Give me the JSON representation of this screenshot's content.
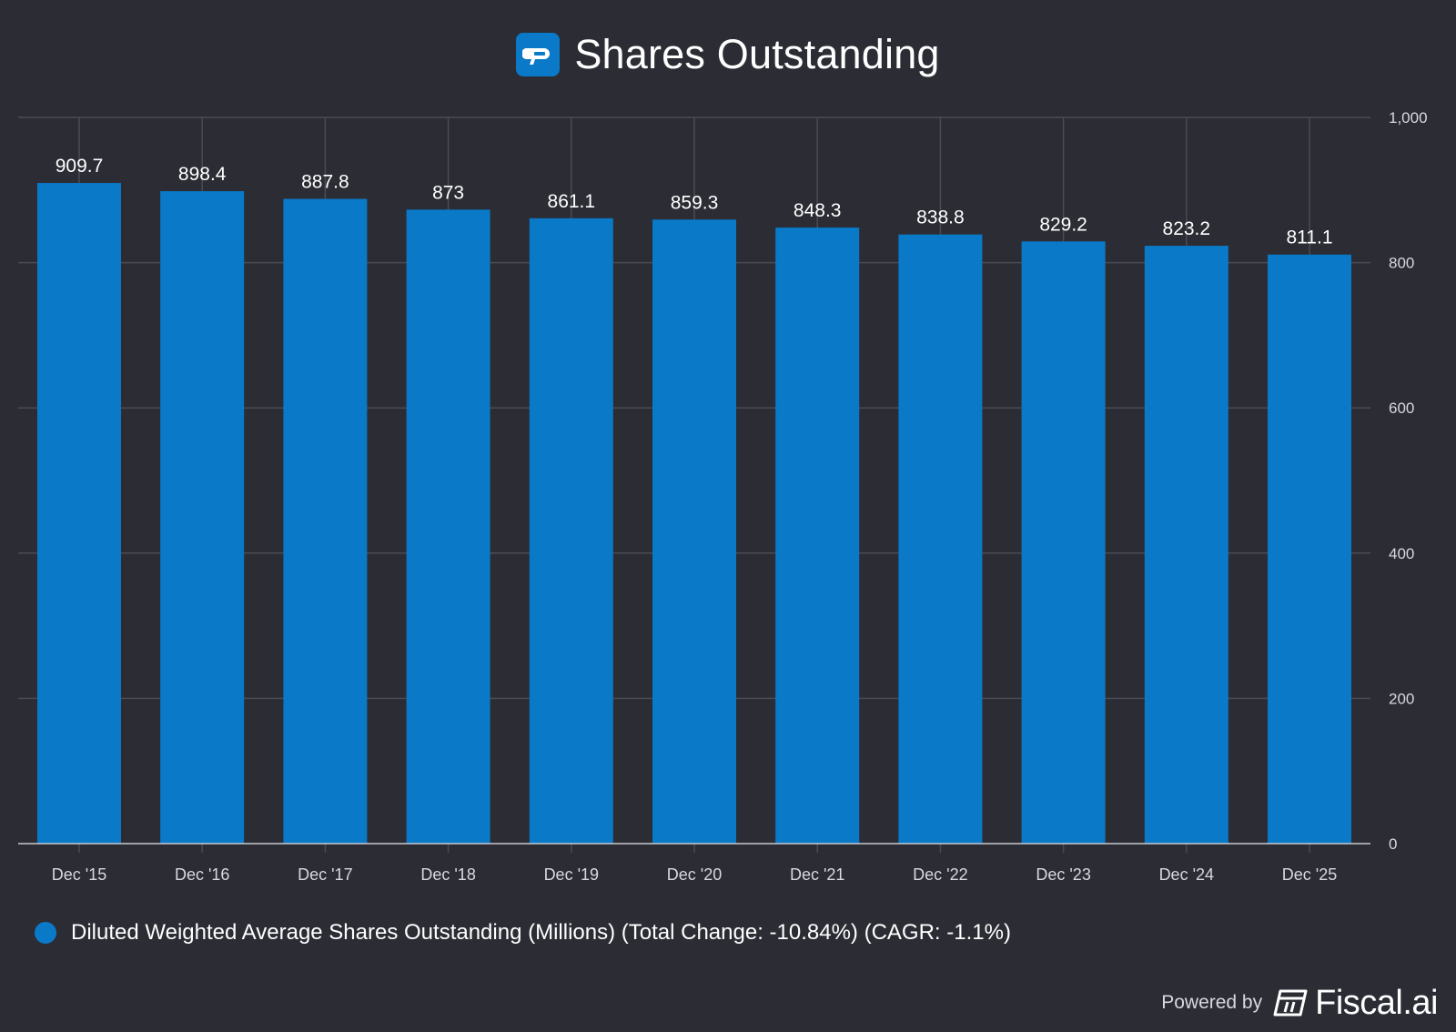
{
  "header": {
    "title": "Shares Outstanding",
    "logo_icon": "fiscal-logo-icon"
  },
  "chart_data": {
    "type": "bar",
    "title": "Shares Outstanding",
    "categories": [
      "Dec '15",
      "Dec '16",
      "Dec '17",
      "Dec '18",
      "Dec '19",
      "Dec '20",
      "Dec '21",
      "Dec '22",
      "Dec '23",
      "Dec '24",
      "Dec '25"
    ],
    "values": [
      909.7,
      898.4,
      887.8,
      873,
      861.1,
      859.3,
      848.3,
      838.8,
      829.2,
      823.2,
      811.1
    ],
    "value_labels": [
      "909.7",
      "898.4",
      "887.8",
      "873",
      "861.1",
      "859.3",
      "848.3",
      "838.8",
      "829.2",
      "823.2",
      "811.1"
    ],
    "ylim": [
      0,
      1000
    ],
    "yticks": [
      0,
      200,
      400,
      600,
      800,
      1000
    ],
    "ytick_labels": [
      "0",
      "200",
      "400",
      "600",
      "800",
      "1,000"
    ],
    "y_axis_side": "right",
    "grid": true,
    "xlabel": "",
    "ylabel": "",
    "series_color": "#0a79c8",
    "legend_position": "bottom-left"
  },
  "legend": {
    "label": "Diluted Weighted Average Shares Outstanding (Millions) (Total Change: -10.84%) (CAGR: -1.1%)"
  },
  "footer": {
    "powered_by": "Powered by",
    "brand": "Fiscal.ai",
    "brand_icon": "fiscal-brand-icon"
  },
  "colors": {
    "background": "#2b2c34",
    "bar": "#0a79c8",
    "grid": "#4a4b55",
    "axis_text": "#d8d9de"
  }
}
